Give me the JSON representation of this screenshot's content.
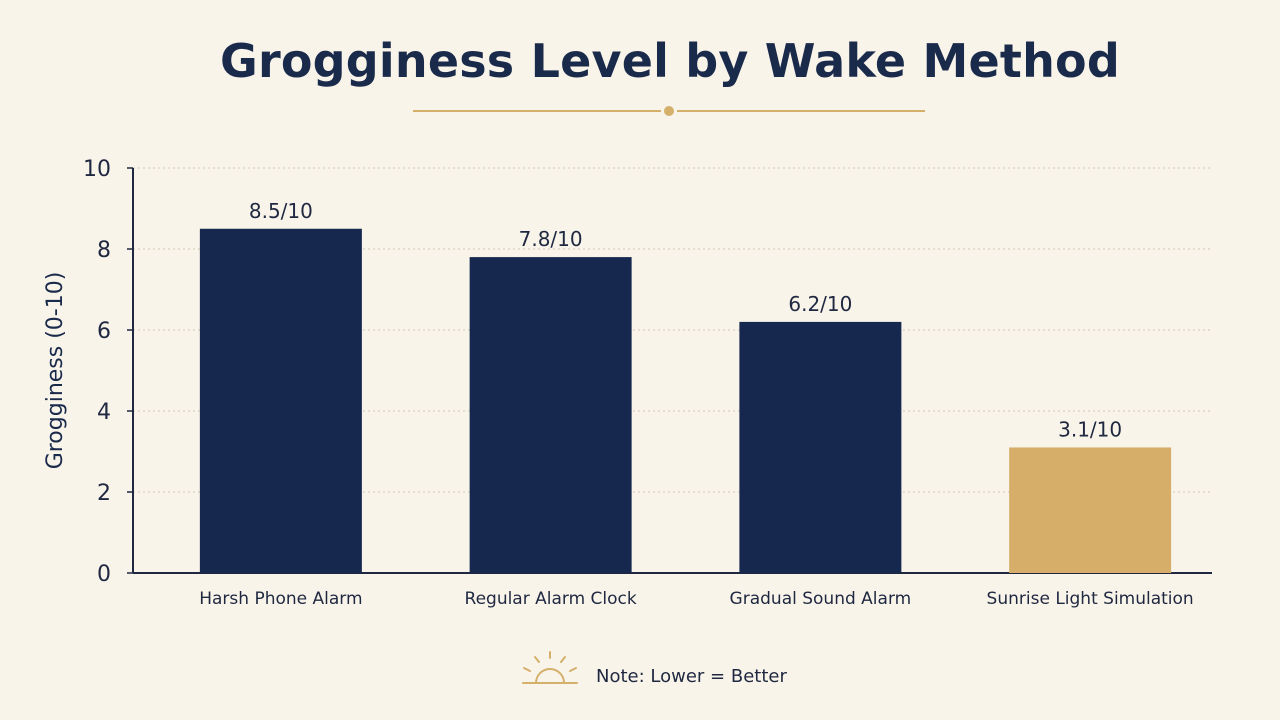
{
  "chart_data": {
    "type": "bar",
    "title": "Grogginess Level by Wake Method",
    "xlabel": "",
    "ylabel": "Grogginess (0-10)",
    "ylim": [
      0,
      10
    ],
    "yticks": [
      0,
      2,
      4,
      6,
      8,
      10
    ],
    "categories": [
      "Harsh Phone Alarm",
      "Regular Alarm Clock",
      "Gradual Sound Alarm",
      "Sunrise Light Simulation"
    ],
    "values": [
      8.5,
      7.8,
      6.2,
      3.1
    ],
    "data_labels": [
      "8.5/10",
      "7.8/10",
      "6.2/10",
      "3.1/10"
    ],
    "bar_colors": [
      "#17284f",
      "#17284f",
      "#17284f",
      "#d6ae6a"
    ],
    "grid": true,
    "legend": "none"
  },
  "note": {
    "text": "Note: Lower = Better",
    "icon": "sunrise-icon"
  },
  "colors": {
    "background": "#f9f4ea",
    "navy": "#17284f",
    "gold": "#d6ae6a",
    "text": "#1a2a4b"
  }
}
